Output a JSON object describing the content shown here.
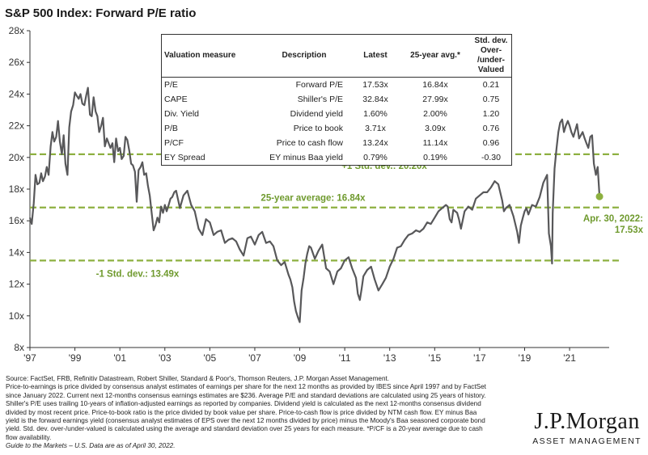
{
  "title": "S&P 500 Index: Forward P/E ratio",
  "table": {
    "headers": [
      "Valuation measure",
      "Description",
      "Latest",
      "25-year avg.*",
      "Std. dev. Over-\n/under-Valued"
    ],
    "rows": [
      [
        "P/E",
        "Forward P/E",
        "17.53x",
        "16.84x",
        "0.21"
      ],
      [
        "CAPE",
        "Shiller's P/E",
        "32.84x",
        "27.99x",
        "0.75"
      ],
      [
        "Div. Yield",
        "Dividend yield",
        "1.60%",
        "2.00%",
        "1.20"
      ],
      [
        "P/B",
        "Price to book",
        "3.71x",
        "3.09x",
        "0.76"
      ],
      [
        "P/CF",
        "Price to cash flow",
        "13.24x",
        "11.14x",
        "0.96"
      ],
      [
        "EY Spread",
        "EY minus Baa yield",
        "0.79%",
        "0.19%",
        "-0.30"
      ]
    ]
  },
  "chart_data": {
    "type": "line",
    "title": "S&P 500 Index: Forward P/E ratio",
    "ylim": [
      8,
      28
    ],
    "y_ticks": [
      8,
      10,
      12,
      14,
      16,
      18,
      20,
      22,
      24,
      26,
      28
    ],
    "y_tick_labels": [
      "8x",
      "10x",
      "12x",
      "14x",
      "16x",
      "18x",
      "20x",
      "22x",
      "24x",
      "26x",
      "28x"
    ],
    "xlim": [
      1997.0,
      2022.4
    ],
    "x_ticks": [
      1997,
      1999,
      2001,
      2003,
      2005,
      2007,
      2009,
      2011,
      2013,
      2015,
      2017,
      2019,
      2021
    ],
    "x_tick_labels": [
      "'97",
      "'99",
      "'01",
      "'03",
      "'05",
      "'07",
      "'09",
      "'11",
      "'13",
      "'15",
      "'17",
      "'19",
      "'21"
    ],
    "grid": false,
    "colors": {
      "series": "#58585a",
      "reference": "#8db040",
      "label": "#6f9a2e"
    },
    "reference_lines": [
      {
        "label": "+1 Std. dev.: 20.20x",
        "value": 20.2
      },
      {
        "label": "25-year average: 16.84x",
        "value": 16.84
      },
      {
        "label": "-1 Std. dev.: 13.49x",
        "value": 13.49
      }
    ],
    "latest_point": {
      "x": 2022.33,
      "y": 17.53,
      "label_line1": "Apr. 30, 2022:",
      "label_line2": "17.53x"
    },
    "series": [
      {
        "x": [
          1997.0,
          1997.08,
          1997.17,
          1997.25,
          1997.33,
          1997.42,
          1997.5,
          1997.58,
          1997.67,
          1997.75,
          1997.83,
          1997.92,
          1998.0,
          1998.08,
          1998.17,
          1998.25,
          1998.33,
          1998.42,
          1998.5,
          1998.58,
          1998.67,
          1998.75,
          1998.83,
          1998.92,
          1999.0,
          1999.08,
          1999.17,
          1999.25,
          1999.33,
          1999.42,
          1999.5,
          1999.58,
          1999.67,
          1999.75,
          1999.83,
          1999.92,
          2000.0,
          2000.08,
          2000.17,
          2000.25,
          2000.33,
          2000.42,
          2000.5,
          2000.58,
          2000.67,
          2000.75,
          2000.83,
          2000.92,
          2001.0,
          2001.08,
          2001.17,
          2001.25,
          2001.33,
          2001.42,
          2001.5,
          2001.58,
          2001.67,
          2001.75,
          2001.83,
          2001.92,
          2002.0,
          2002.08,
          2002.17,
          2002.25,
          2002.33,
          2002.42,
          2002.5,
          2002.58,
          2002.67,
          2002.75,
          2002.83,
          2002.92,
          2003.0,
          2003.08,
          2003.17,
          2003.25,
          2003.33,
          2003.42,
          2003.5,
          2003.67,
          2003.83,
          2004.0,
          2004.17,
          2004.33,
          2004.5,
          2004.67,
          2004.83,
          2005.0,
          2005.17,
          2005.33,
          2005.5,
          2005.67,
          2005.83,
          2006.0,
          2006.17,
          2006.33,
          2006.5,
          2006.67,
          2006.83,
          2007.0,
          2007.17,
          2007.33,
          2007.5,
          2007.67,
          2007.83,
          2008.0,
          2008.17,
          2008.33,
          2008.5,
          2008.58,
          2008.67,
          2008.75,
          2008.83,
          2008.92,
          2009.0,
          2009.08,
          2009.17,
          2009.25,
          2009.33,
          2009.42,
          2009.5,
          2009.67,
          2009.83,
          2010.0,
          2010.17,
          2010.33,
          2010.5,
          2010.67,
          2010.83,
          2011.0,
          2011.17,
          2011.33,
          2011.5,
          2011.58,
          2011.67,
          2011.75,
          2011.83,
          2012.0,
          2012.17,
          2012.33,
          2012.5,
          2012.67,
          2012.83,
          2013.0,
          2013.17,
          2013.33,
          2013.5,
          2013.67,
          2013.83,
          2014.0,
          2014.17,
          2014.33,
          2014.5,
          2014.67,
          2014.83,
          2015.0,
          2015.17,
          2015.33,
          2015.5,
          2015.58,
          2015.67,
          2015.75,
          2015.83,
          2016.0,
          2016.08,
          2016.17,
          2016.33,
          2016.5,
          2016.67,
          2016.83,
          2017.0,
          2017.17,
          2017.33,
          2017.5,
          2017.67,
          2017.83,
          2018.0,
          2018.08,
          2018.17,
          2018.33,
          2018.5,
          2018.67,
          2018.75,
          2018.83,
          2018.92,
          2019.0,
          2019.08,
          2019.17,
          2019.33,
          2019.5,
          2019.67,
          2019.83,
          2020.0,
          2020.08,
          2020.17,
          2020.22,
          2020.25,
          2020.33,
          2020.42,
          2020.5,
          2020.58,
          2020.67,
          2020.75,
          2020.83,
          2020.92,
          2021.0,
          2021.08,
          2021.17,
          2021.25,
          2021.33,
          2021.42,
          2021.5,
          2021.58,
          2021.67,
          2021.75,
          2021.83,
          2021.92,
          2022.0,
          2022.08,
          2022.17,
          2022.25,
          2022.33
        ],
        "y": [
          16.2,
          15.8,
          17.1,
          18.9,
          18.3,
          18.4,
          19.0,
          18.5,
          18.8,
          19.4,
          18.9,
          20.7,
          21.6,
          21.0,
          21.3,
          22.3,
          21.0,
          20.2,
          21.4,
          19.6,
          18.9,
          21.9,
          22.9,
          23.3,
          24.1,
          23.9,
          23.7,
          24.0,
          23.4,
          23.3,
          23.9,
          24.4,
          22.7,
          22.6,
          23.8,
          22.9,
          22.6,
          21.6,
          22.0,
          22.5,
          20.7,
          21.2,
          20.9,
          20.6,
          20.9,
          19.7,
          21.2,
          20.4,
          20.6,
          19.9,
          20.1,
          21.3,
          21.1,
          20.4,
          19.6,
          19.5,
          19.1,
          17.2,
          19.2,
          19.4,
          19.7,
          18.9,
          19.0,
          18.2,
          17.6,
          16.4,
          15.4,
          15.7,
          16.2,
          15.9,
          16.9,
          16.5,
          17.0,
          16.6,
          17.0,
          17.4,
          17.5,
          17.8,
          17.9,
          16.8,
          17.6,
          17.9,
          17.0,
          16.6,
          15.5,
          15.1,
          16.1,
          15.9,
          15.1,
          15.3,
          15.4,
          14.6,
          14.8,
          14.9,
          14.7,
          14.2,
          13.8,
          14.9,
          15.0,
          14.5,
          15.1,
          15.3,
          14.6,
          14.7,
          14.4,
          13.5,
          13.2,
          13.4,
          12.6,
          12.3,
          11.8,
          10.9,
          10.3,
          9.9,
          9.6,
          11.6,
          12.4,
          13.3,
          13.9,
          14.4,
          14.3,
          13.6,
          14.1,
          14.5,
          13.0,
          12.8,
          12.0,
          12.8,
          13.0,
          13.5,
          13.7,
          13.0,
          12.4,
          11.4,
          11.0,
          11.7,
          12.5,
          12.9,
          13.1,
          12.3,
          11.6,
          12.0,
          12.4,
          13.1,
          13.6,
          14.3,
          14.4,
          14.8,
          15.1,
          15.2,
          15.4,
          15.3,
          15.5,
          15.9,
          15.8,
          16.2,
          16.6,
          16.8,
          17.0,
          16.9,
          16.1,
          15.9,
          16.7,
          16.5,
          16.1,
          15.5,
          16.6,
          16.9,
          16.7,
          17.4,
          17.6,
          17.8,
          17.8,
          18.1,
          18.5,
          18.3,
          17.3,
          16.6,
          16.8,
          17.0,
          16.3,
          15.3,
          14.6,
          15.7,
          16.2,
          16.6,
          16.8,
          16.4,
          17.0,
          16.9,
          17.5,
          18.4,
          18.9,
          15.2,
          14.4,
          13.3,
          16.5,
          19.3,
          20.6,
          21.6,
          22.2,
          22.4,
          21.6,
          22.0,
          22.3,
          22.0,
          21.6,
          21.3,
          21.7,
          22.1,
          21.2,
          21.4,
          21.6,
          21.2,
          20.9,
          20.6,
          21.3,
          21.4,
          19.6,
          18.9,
          19.4,
          17.53
        ]
      }
    ]
  },
  "footnote": {
    "lines": [
      "Source: FactSet, FRB, Refinitiv Datastream, Robert Shiller, Standard & Poor's, Thomson Reuters, J.P. Morgan Asset Management.",
      "Price-to-earnings is price divided by consensus analyst estimates of earnings per share for the next 12 months as provided by IBES since April 1997 and by FactSet since January 2022. Current next 12-months consensus earnings estimates are $236. Average P/E and standard deviations are calculated using 25 years of history. Shiller's P/E uses trailing 10-years of inflation-adjusted earnings as reported by companies. Dividend yield is calculated as the next 12-months consensus dividend divided by most recent price. Price-to-book ratio is the price divided by book value per share. Price-to-cash flow is price divided by NTM cash flow. EY minus Baa yield is the forward earnings yield (consensus analyst estimates of EPS over the next 12 months divided by price) minus the Moody's Baa seasoned corporate bond yield. Std. dev. over-/under-valued is calculated using the average and standard deviation over 25 years for each measure. *P/CF is a 20-year average due to cash flow availability."
    ],
    "italic_line": "Guide to the Markets – U.S. Data are as of April 30, 2022."
  },
  "brand": {
    "name": "J.P.Morgan",
    "sub": "ASSET MANAGEMENT"
  }
}
